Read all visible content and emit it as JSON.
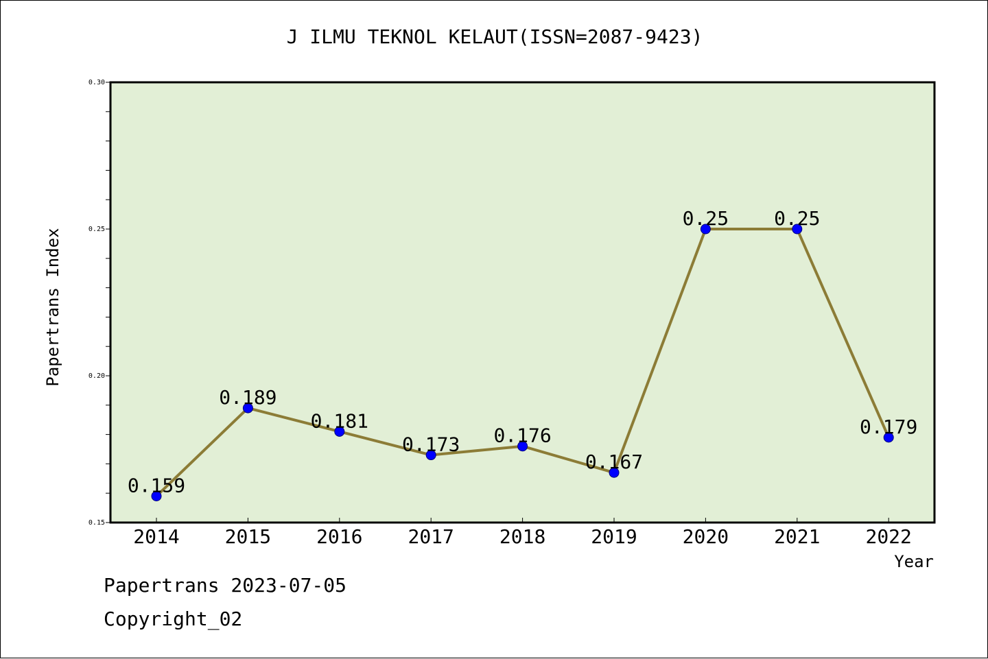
{
  "chart_data": {
    "type": "line",
    "title": "J ILMU TEKNOL KELAUT(ISSN=2087-9423)",
    "xlabel": "Year",
    "ylabel": "Papertrans Index",
    "categories": [
      "2014",
      "2015",
      "2016",
      "2017",
      "2018",
      "2019",
      "2020",
      "2021",
      "2022"
    ],
    "series": [
      {
        "values": [
          0.159,
          0.189,
          0.181,
          0.173,
          0.176,
          0.167,
          0.25,
          0.25,
          0.179
        ],
        "labels": [
          "0.159",
          "0.189",
          "0.181",
          "0.173",
          "0.176",
          "0.167",
          "0.25",
          "0.25",
          "0.179"
        ]
      }
    ],
    "ylim": [
      0.15,
      0.3
    ],
    "yticks": [
      "0.15",
      "0.20",
      "0.25",
      "0.30"
    ],
    "grid": false,
    "legend": "none"
  },
  "colors": {
    "plot_background": "#e2efd6",
    "line": "#8c7c36",
    "marker": "#0000ff",
    "axis": "#000000"
  },
  "footer": {
    "date_text": "Papertrans 2023-07-05",
    "copyright_text": "Copyright_02"
  }
}
